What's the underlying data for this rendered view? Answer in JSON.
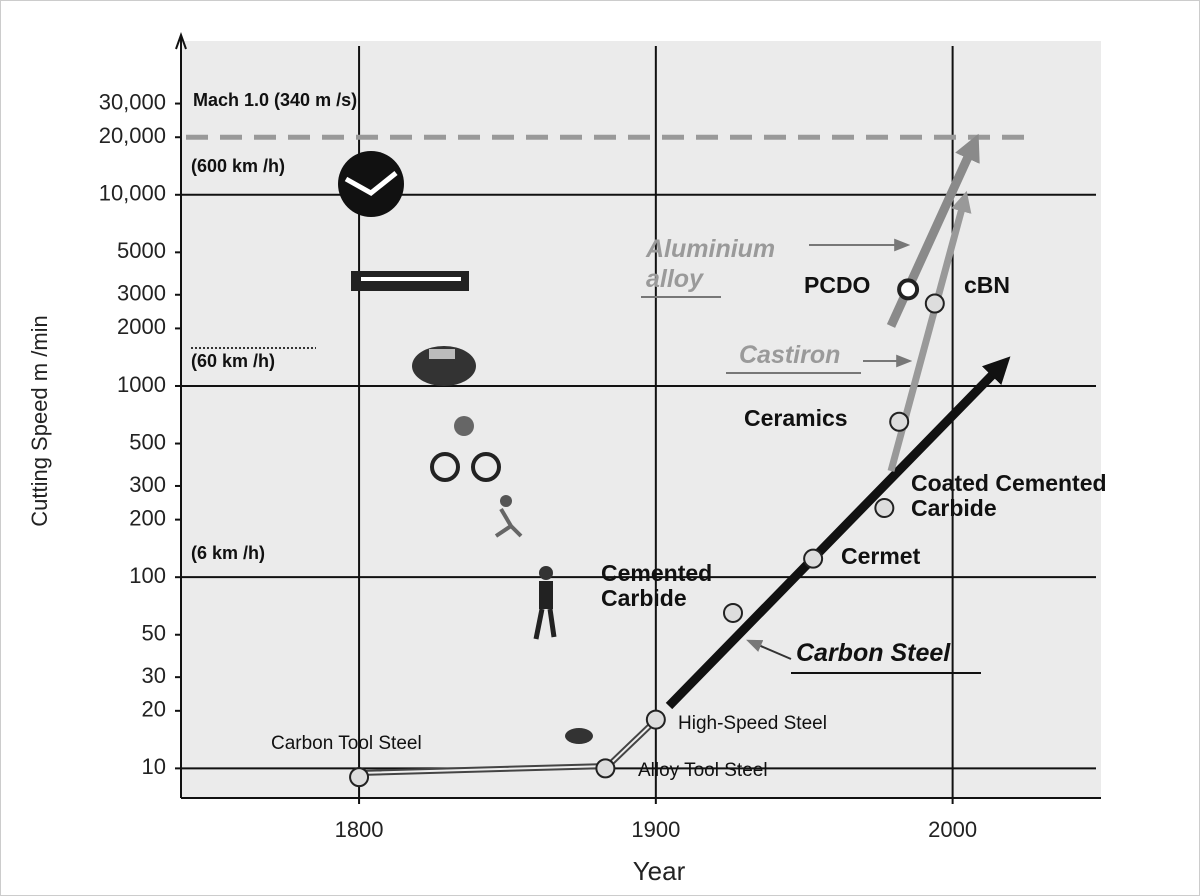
{
  "chart_data": {
    "type": "scatter",
    "x_label": "Year",
    "y_label": "Cutting Speed m /min",
    "xlim": [
      1740,
      2050
    ],
    "ylim": [
      7,
      60000
    ],
    "y_scale": "log",
    "grid": true,
    "xticks": [
      1800,
      1900,
      2000
    ],
    "yticks": [
      10,
      20,
      30,
      50,
      100,
      200,
      300,
      500,
      1000,
      2000,
      3000,
      5000,
      {
        "value": 10000,
        "label": "10,000"
      },
      {
        "value": 20000,
        "label": "20,000"
      },
      {
        "value": 30000,
        "label": "30,000"
      }
    ],
    "x": [
      1800,
      1883,
      1900,
      1926,
      1953,
      1977,
      1982,
      1985,
      1994
    ],
    "values": [
      9,
      10,
      18,
      65,
      125,
      230,
      650,
      3200,
      2700
    ],
    "point_labels": [
      "Carbon Tool Steel",
      "Alloy Tool Steel",
      "High-Speed Steel",
      "Cemented Carbide",
      "Cermet",
      "Coated Cemented Carbide",
      "Ceramics",
      "PCDO",
      "cBN"
    ],
    "reference_line": {
      "value": 20000,
      "label": "Mach 1.0 (340 m /s)"
    },
    "annotations": [
      "(600 km /h)",
      "(60 km /h)",
      "(6 km /h)",
      "Aluminium alloy",
      "Castiron",
      "Carbon Steel"
    ]
  }
}
